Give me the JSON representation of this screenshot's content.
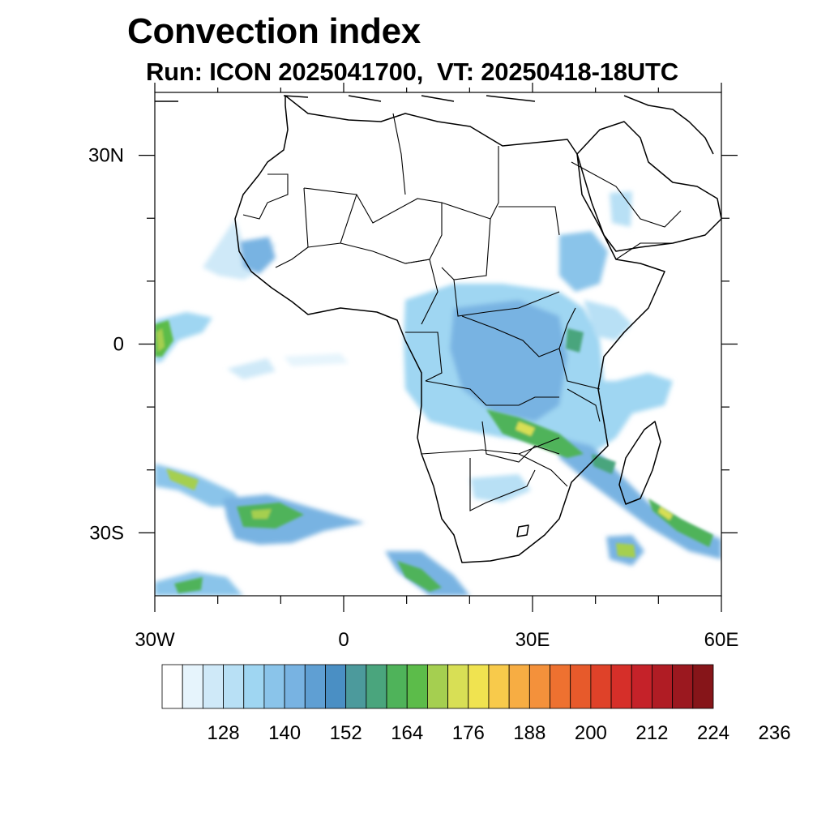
{
  "header": {
    "title": "Convection index",
    "subtitle": "Run: ICON 2025041700,  VT: 20250418-18UTC"
  },
  "map": {
    "region": "Africa",
    "lon_range": [
      -30,
      60
    ],
    "lat_range": [
      -40,
      40
    ],
    "lat_ticks": [
      {
        "lat": 30,
        "label": "30N"
      },
      {
        "lat": 0,
        "label": "0"
      },
      {
        "lat": -30,
        "label": "30S"
      }
    ],
    "lon_ticks": [
      {
        "lon": -30,
        "label": "30W"
      },
      {
        "lon": 0,
        "label": "0"
      },
      {
        "lon": 30,
        "label": "30E"
      },
      {
        "lon": 60,
        "label": "60E"
      }
    ],
    "minor_lon_ticks": [
      -20,
      -10,
      10,
      20,
      40,
      50
    ],
    "minor_lat_ticks": [
      20,
      10,
      -10,
      -20
    ]
  },
  "colorbar": {
    "labels": [
      "128",
      "140",
      "152",
      "164",
      "176",
      "188",
      "200",
      "212",
      "224",
      "236"
    ],
    "colors": [
      "#ffffff",
      "#e6f4fc",
      "#cfe9f8",
      "#b8e0f5",
      "#9fd6f2",
      "#8ac4ea",
      "#78b3e2",
      "#5f9fd3",
      "#4a8fc4",
      "#4c9a9c",
      "#4aa57d",
      "#4fb35a",
      "#5cbc4a",
      "#a5cf50",
      "#d8df55",
      "#f0e350",
      "#f8ca4b",
      "#f7ad43",
      "#f4913b",
      "#ee7130",
      "#e75a2b",
      "#df4229",
      "#d62f29",
      "#c52229",
      "#b01c24",
      "#9b181f",
      "#861519"
    ]
  }
}
